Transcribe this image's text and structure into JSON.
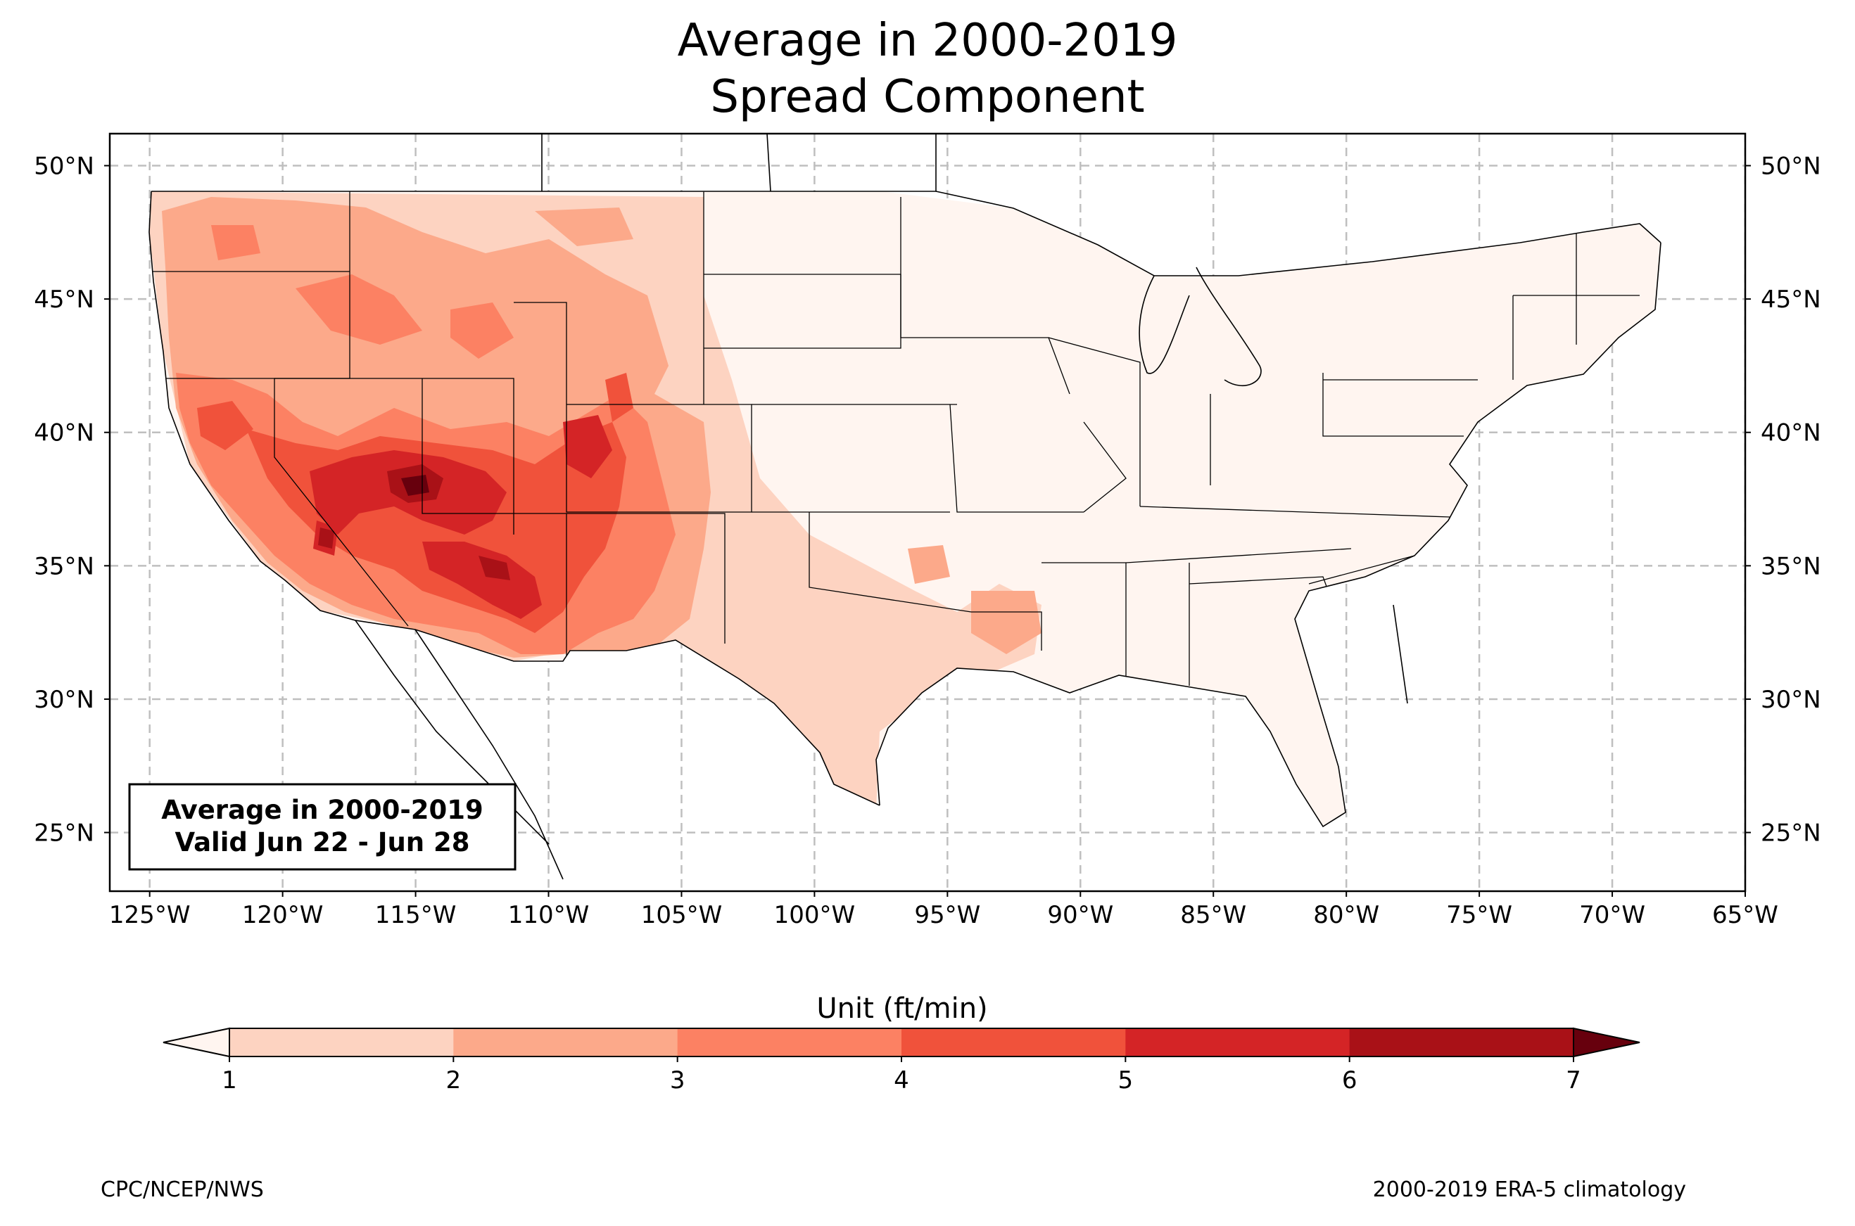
{
  "title": "Average in 2000-2019",
  "subtitle": "Spread Component",
  "map": {
    "lon_range": [
      -126.5,
      -65
    ],
    "lat_range": [
      22.8,
      51.2
    ],
    "lon_ticks": [
      "125°W",
      "120°W",
      "115°W",
      "110°W",
      "105°W",
      "100°W",
      "95°W",
      "90°W",
      "85°W",
      "80°W",
      "75°W",
      "70°W",
      "65°W"
    ],
    "lat_ticks": [
      "25°N",
      "30°N",
      "35°N",
      "40°N",
      "45°N",
      "50°N"
    ],
    "gridlines": true,
    "inset": {
      "line1": "Average in 2000-2019",
      "line2": "Valid Jun 22 - Jun 28",
      "placement": "bottom-left"
    }
  },
  "colorbar": {
    "label": "Unit (ft/min)",
    "ticks": [
      "1",
      "2",
      "3",
      "4",
      "5",
      "6",
      "7"
    ],
    "colors": [
      "#fdd3c1",
      "#fca98a",
      "#fc8163",
      "#f0523b",
      "#d42426",
      "#a91117"
    ],
    "under_color": "#fff5f0",
    "over_color": "#67000d"
  },
  "credits": {
    "left": "CPC/NCEP/NWS",
    "right": "2000-2019 ERA-5 climatology"
  }
}
